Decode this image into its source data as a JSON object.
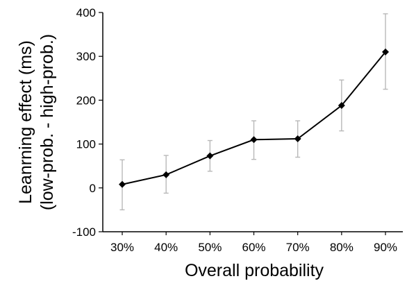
{
  "chart_data": {
    "type": "line",
    "title": "",
    "xlabel": "Overall probability",
    "ylabel_line1": "Leanrning effect (ms)",
    "ylabel_line2": "(low-prob. - high-prob.)",
    "categories": [
      "30%",
      "40%",
      "50%",
      "60%",
      "70%",
      "80%",
      "90%"
    ],
    "values": [
      8,
      30,
      73,
      110,
      112,
      188,
      310
    ],
    "error_low": [
      -50,
      -12,
      38,
      65,
      70,
      130,
      225
    ],
    "error_high": [
      64,
      74,
      108,
      153,
      153,
      246,
      397
    ],
    "ylim": [
      -100,
      400
    ],
    "yticks": [
      -100,
      0,
      100,
      200,
      300,
      400
    ],
    "ytick_labels": [
      "-100",
      "0",
      "100",
      "200",
      "300",
      "400"
    ],
    "marker": "diamond",
    "line_color": "#000000",
    "error_bar_color": "#b8b8b8",
    "grid": false,
    "legend": "none"
  }
}
